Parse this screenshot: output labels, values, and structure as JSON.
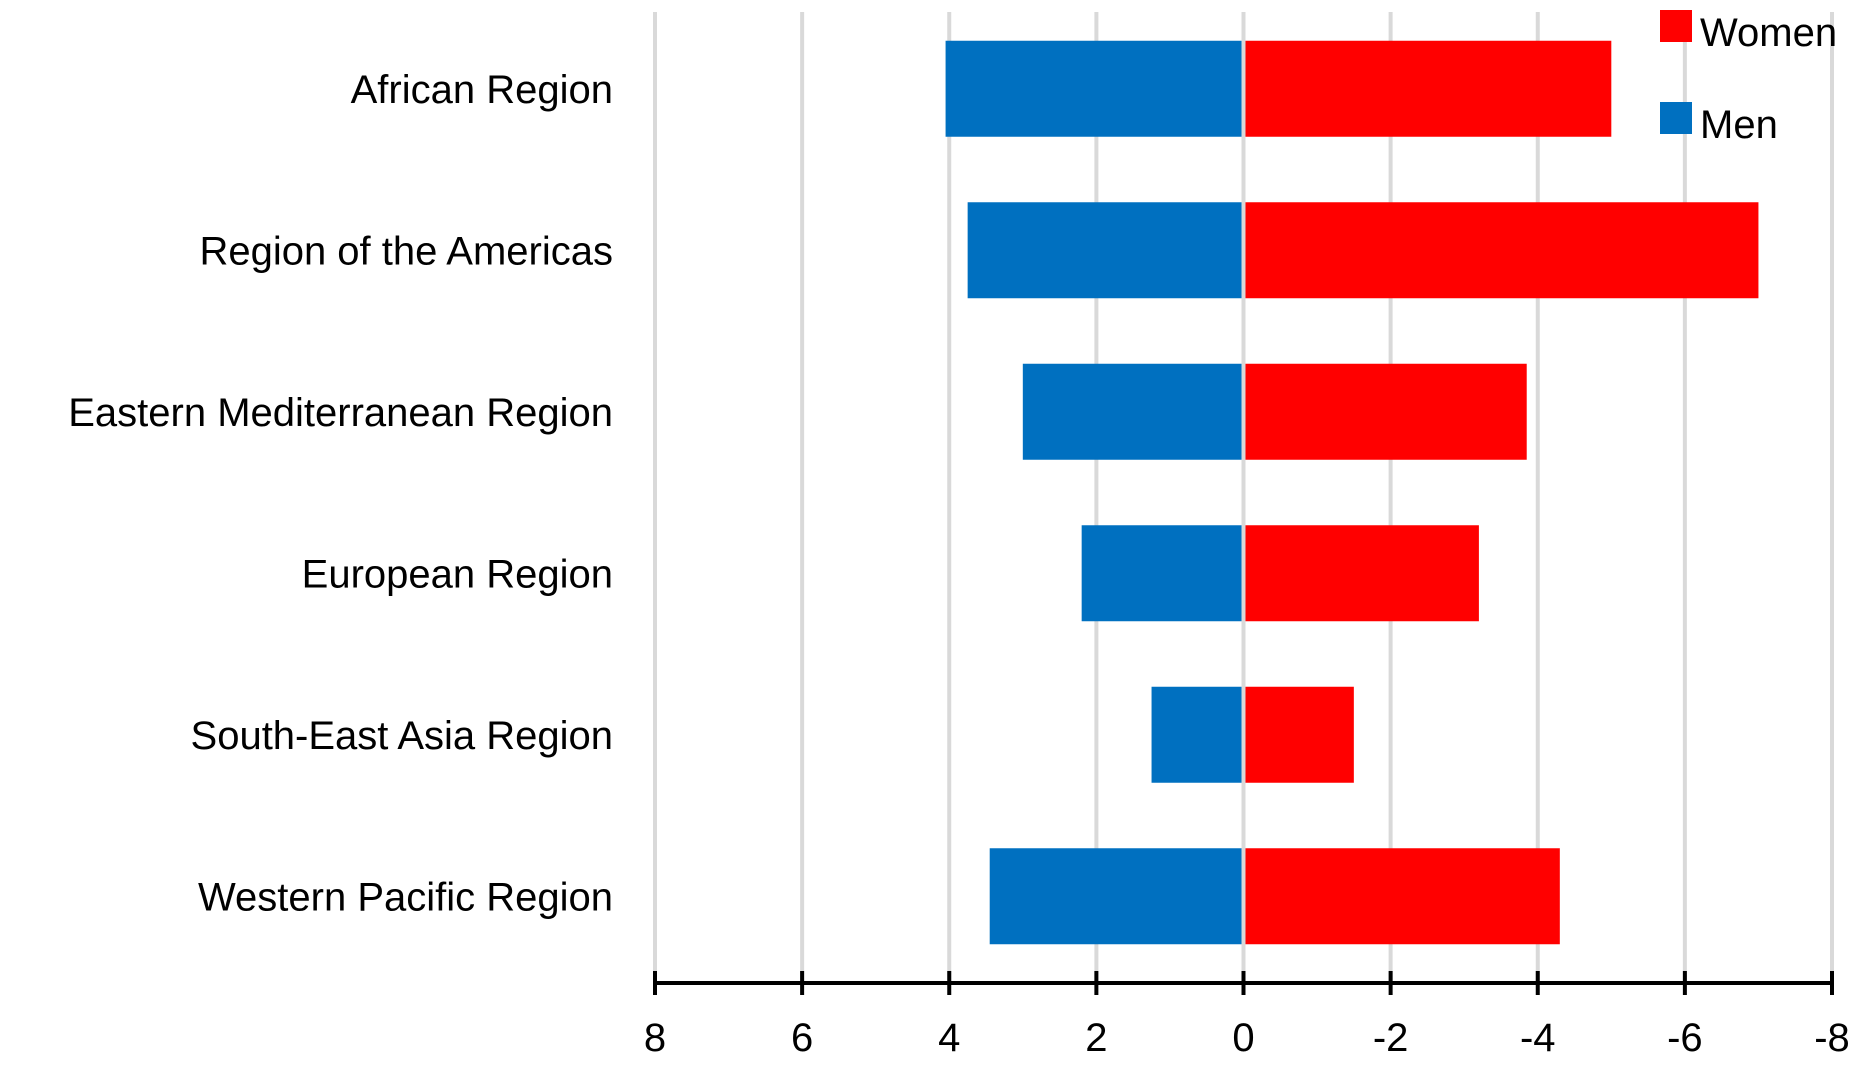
{
  "chart_data": {
    "type": "bar",
    "orientation": "horizontal",
    "title": "",
    "xlabel": "",
    "ylabel": "",
    "categories": [
      "African Region",
      "Region of the Americas",
      "Eastern Mediterranean Region",
      "European Region",
      "South-East Asia Region",
      "Western Pacific Region"
    ],
    "series": [
      {
        "name": "Men",
        "values": [
          4.05,
          3.75,
          3.0,
          2.2,
          1.25,
          3.45
        ],
        "color": "#0070C0"
      },
      {
        "name": "Women",
        "values": [
          -5.0,
          -7.0,
          -3.85,
          -3.2,
          -1.5,
          -4.3
        ],
        "color": "#FF0000"
      }
    ],
    "xlim": [
      8,
      -8
    ],
    "x_reversed": true,
    "x_ticks": [
      8,
      6,
      4,
      2,
      0,
      -2,
      -4,
      -6,
      -8
    ],
    "x_tick_labels": [
      "8",
      "6",
      "4",
      "2",
      "0",
      "-2",
      "-4",
      "-6",
      "-8"
    ],
    "grid": "vertical",
    "legend_position": "top-right",
    "legend_order": [
      "Women",
      "Men"
    ],
    "colors": {
      "gridline": "#D9D9D9",
      "axis": "#000000",
      "zero_line": "#D9D9D9"
    }
  }
}
